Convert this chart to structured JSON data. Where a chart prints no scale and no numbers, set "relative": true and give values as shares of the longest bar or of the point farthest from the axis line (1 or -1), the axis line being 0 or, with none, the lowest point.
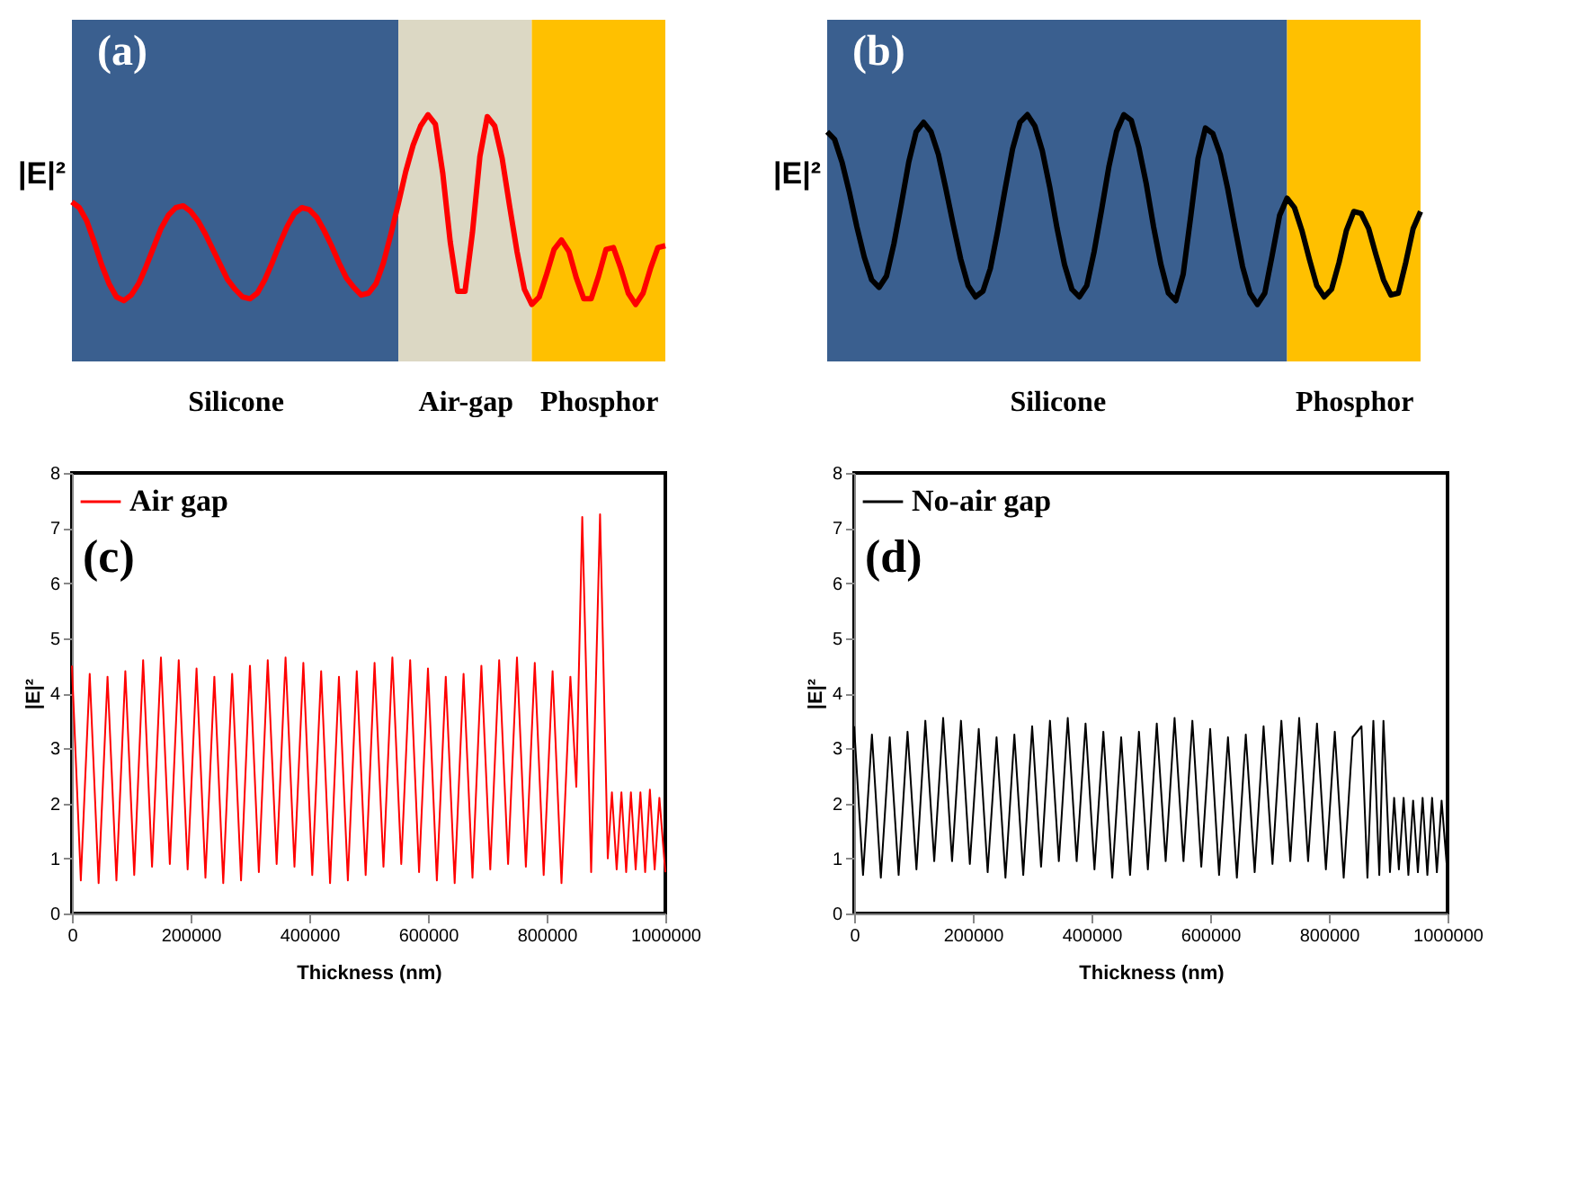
{
  "chart_data": [
    {
      "type": "line",
      "relative": true,
      "ylabel": "|E|²",
      "annotations": [
        "(a)"
      ],
      "tick_labels": "x",
      "categories": [
        null,
        null,
        null,
        null,
        null,
        null,
        null,
        null,
        null,
        null,
        null,
        null,
        null,
        null,
        null,
        null,
        null,
        null,
        null,
        null,
        null,
        null,
        "Silicone",
        null,
        null,
        null,
        null,
        null,
        null,
        null,
        null,
        null,
        null,
        null,
        null,
        null,
        null,
        null,
        null,
        null,
        null,
        null,
        null,
        null,
        null,
        null,
        null,
        null,
        null,
        null,
        null,
        null,
        null,
        "Air-gap",
        null,
        null,
        null,
        null,
        null,
        null,
        null,
        null,
        null,
        null,
        null,
        null,
        null,
        null,
        null,
        null,
        null,
        "Phosphor",
        null,
        null,
        null,
        null,
        null,
        null,
        null,
        null,
        null
      ],
      "series": [
        {
          "color": "#ff0000",
          "values": [
            0.54,
            0.51,
            0.44,
            0.33,
            0.21,
            0.11,
            0.04,
            0.02,
            0.05,
            0.11,
            0.2,
            0.3,
            0.4,
            0.47,
            0.51,
            0.52,
            0.49,
            0.44,
            0.37,
            0.29,
            0.21,
            0.13,
            0.08,
            0.04,
            0.03,
            0.06,
            0.13,
            0.22,
            0.32,
            0.41,
            0.48,
            0.51,
            0.5,
            0.46,
            0.39,
            0.31,
            0.22,
            0.14,
            0.09,
            0.05,
            0.06,
            0.11,
            0.22,
            0.37,
            0.53,
            0.7,
            0.84,
            0.94,
            1.0,
            0.95,
            0.69,
            0.33,
            0.07,
            0.07,
            0.38,
            0.78,
            0.99,
            0.94,
            0.77,
            0.52,
            0.28,
            0.08,
            0.0,
            0.04,
            0.16,
            0.29,
            0.34,
            0.28,
            0.14,
            0.03,
            0.03,
            0.15,
            0.29,
            0.3,
            0.19,
            0.06,
            0.0,
            0.06,
            0.19,
            0.3,
            0.31
          ]
        }
      ],
      "legend": false
    },
    {
      "type": "line",
      "relative": true,
      "ylabel": "|E|²",
      "annotations": [
        "(b)"
      ],
      "tick_labels": "x",
      "categories": [
        null,
        null,
        null,
        null,
        null,
        null,
        null,
        null,
        null,
        null,
        null,
        null,
        null,
        null,
        null,
        null,
        null,
        null,
        null,
        null,
        null,
        null,
        null,
        null,
        null,
        null,
        null,
        null,
        null,
        null,
        null,
        "Silicone",
        null,
        null,
        null,
        null,
        null,
        null,
        null,
        null,
        null,
        null,
        null,
        null,
        null,
        null,
        null,
        null,
        null,
        null,
        null,
        null,
        null,
        null,
        null,
        null,
        null,
        null,
        null,
        null,
        null,
        null,
        null,
        null,
        null,
        null,
        null,
        null,
        null,
        null,
        null,
        "Phosphor",
        null,
        null,
        null,
        null,
        null,
        null,
        null,
        null,
        null
      ],
      "series": [
        {
          "color": "#000000",
          "values": [
            0.91,
            0.87,
            0.75,
            0.59,
            0.41,
            0.25,
            0.13,
            0.09,
            0.15,
            0.32,
            0.53,
            0.75,
            0.91,
            0.96,
            0.91,
            0.79,
            0.61,
            0.42,
            0.24,
            0.1,
            0.04,
            0.07,
            0.19,
            0.39,
            0.61,
            0.82,
            0.96,
            1.0,
            0.94,
            0.81,
            0.62,
            0.4,
            0.21,
            0.08,
            0.04,
            0.1,
            0.28,
            0.5,
            0.73,
            0.91,
            1.0,
            0.97,
            0.83,
            0.64,
            0.41,
            0.21,
            0.06,
            0.02,
            0.16,
            0.46,
            0.77,
            0.93,
            0.9,
            0.79,
            0.61,
            0.4,
            0.2,
            0.06,
            0.0,
            0.06,
            0.26,
            0.47,
            0.56,
            0.51,
            0.39,
            0.24,
            0.1,
            0.04,
            0.08,
            0.22,
            0.39,
            0.49,
            0.48,
            0.4,
            0.26,
            0.13,
            0.05,
            0.06,
            0.22,
            0.4,
            0.49
          ]
        }
      ],
      "legend": false
    },
    {
      "type": "line",
      "xlabel": "Thickness (nm)",
      "ylabel": "|E|²",
      "annotations": [
        "(c)"
      ],
      "legend": "top left",
      "grid": false,
      "xlim": [
        0,
        1000000
      ],
      "xticks": [
        0,
        200000,
        400000,
        600000,
        800000,
        1000000
      ],
      "ylim": [
        0,
        8
      ],
      "yticks": [
        0,
        1,
        2,
        3,
        4,
        5,
        6,
        7,
        8
      ],
      "x": [
        0,
        15000,
        30000,
        45000,
        60000,
        75000,
        90000,
        105000,
        120000,
        135000,
        150000,
        165000,
        180000,
        195000,
        210000,
        225000,
        240000,
        255000,
        270000,
        285000,
        300000,
        315000,
        330000,
        345000,
        360000,
        375000,
        390000,
        405000,
        420000,
        435000,
        450000,
        465000,
        480000,
        495000,
        510000,
        525000,
        540000,
        555000,
        570000,
        585000,
        600000,
        615000,
        630000,
        645000,
        660000,
        675000,
        690000,
        705000,
        720000,
        735000,
        750000,
        765000,
        780000,
        795000,
        810000,
        825000,
        840000,
        850000,
        860000,
        875000,
        890000,
        903000,
        910000,
        918000,
        926000,
        934000,
        942000,
        950000,
        958000,
        966000,
        974000,
        982000,
        990000,
        1000000
      ],
      "series": [
        {
          "name": "Air gap",
          "color": "#ff0000",
          "values": [
            4.5,
            0.6,
            4.35,
            0.55,
            4.3,
            0.6,
            4.4,
            0.7,
            4.6,
            0.85,
            4.65,
            0.9,
            4.6,
            0.8,
            4.45,
            0.65,
            4.3,
            0.55,
            4.35,
            0.6,
            4.5,
            0.75,
            4.6,
            0.9,
            4.65,
            0.85,
            4.55,
            0.7,
            4.4,
            0.55,
            4.3,
            0.6,
            4.4,
            0.7,
            4.55,
            0.85,
            4.65,
            0.9,
            4.6,
            0.75,
            4.45,
            0.6,
            4.3,
            0.55,
            4.35,
            0.65,
            4.5,
            0.8,
            4.6,
            0.9,
            4.65,
            0.85,
            4.55,
            0.7,
            4.4,
            0.55,
            4.3,
            2.3,
            7.2,
            0.75,
            7.25,
            1.0,
            2.2,
            0.8,
            2.2,
            0.75,
            2.2,
            0.8,
            2.2,
            0.75,
            2.25,
            0.8,
            2.1,
            0.75
          ]
        }
      ]
    },
    {
      "type": "line",
      "xlabel": "Thickness (nm)",
      "ylabel": "|E|²",
      "annotations": [
        "(d)"
      ],
      "legend": "top left",
      "grid": false,
      "xlim": [
        0,
        1000000
      ],
      "xticks": [
        0,
        200000,
        400000,
        600000,
        800000,
        1000000
      ],
      "ylim": [
        0,
        8
      ],
      "yticks": [
        0,
        1,
        2,
        3,
        4,
        5,
        6,
        7,
        8
      ],
      "x": [
        0,
        15000,
        30000,
        45000,
        60000,
        75000,
        90000,
        105000,
        120000,
        135000,
        150000,
        165000,
        180000,
        195000,
        210000,
        225000,
        240000,
        255000,
        270000,
        285000,
        300000,
        315000,
        330000,
        345000,
        360000,
        375000,
        390000,
        405000,
        420000,
        435000,
        450000,
        465000,
        480000,
        495000,
        510000,
        525000,
        540000,
        555000,
        570000,
        585000,
        600000,
        615000,
        630000,
        645000,
        660000,
        675000,
        690000,
        705000,
        720000,
        735000,
        750000,
        765000,
        780000,
        795000,
        810000,
        825000,
        840000,
        855000,
        865000,
        875000,
        885000,
        892000,
        903000,
        910000,
        918000,
        926000,
        934000,
        942000,
        950000,
        958000,
        966000,
        974000,
        982000,
        990000,
        1000000
      ],
      "series": [
        {
          "name": "No-air gap",
          "color": "#000000",
          "values": [
            3.4,
            0.7,
            3.25,
            0.65,
            3.2,
            0.7,
            3.3,
            0.8,
            3.5,
            0.95,
            3.55,
            0.95,
            3.5,
            0.9,
            3.35,
            0.75,
            3.2,
            0.65,
            3.25,
            0.7,
            3.4,
            0.85,
            3.5,
            0.95,
            3.55,
            0.95,
            3.45,
            0.8,
            3.3,
            0.65,
            3.2,
            0.7,
            3.3,
            0.8,
            3.45,
            0.95,
            3.55,
            0.95,
            3.5,
            0.85,
            3.35,
            0.7,
            3.2,
            0.65,
            3.25,
            0.75,
            3.4,
            0.9,
            3.5,
            0.95,
            3.55,
            0.95,
            3.45,
            0.8,
            3.3,
            0.65,
            3.2,
            3.4,
            0.65,
            3.5,
            0.7,
            3.5,
            0.75,
            2.1,
            0.8,
            2.1,
            0.7,
            2.05,
            0.75,
            2.1,
            0.7,
            2.1,
            0.75,
            2.05,
            0.7
          ]
        }
      ]
    }
  ]
}
